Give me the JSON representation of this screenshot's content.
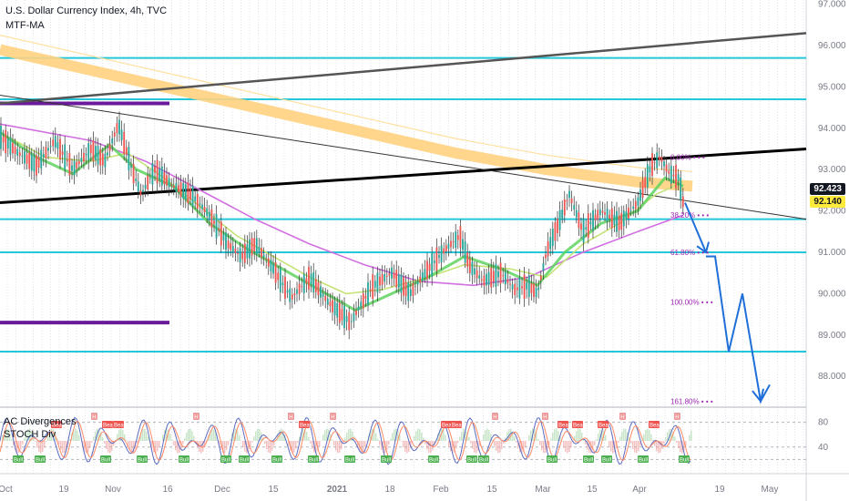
{
  "header": {
    "title": "U.S. Dollar Currency Index, 4h, TVC",
    "indicator": "MTF-MA"
  },
  "oscillator": {
    "label1": "AC Divergences",
    "label2": "STOCH Div",
    "ticks": [
      "80",
      "40"
    ],
    "badge_bull": "Bull",
    "badge_bear": "Bear",
    "badge_h": "H"
  },
  "price_tags": {
    "last": "92.423",
    "current": "92.140",
    "last_color": "#131722",
    "current_color": "#ffeb3b"
  },
  "fib_labels": [
    "0.00%",
    "38.20%",
    "61.80%",
    "100.00%",
    "161.80%"
  ],
  "chart_data": {
    "type": "line",
    "title": "U.S. Dollar Currency Index, 4h, TVC",
    "y_ticks": [
      "97.000",
      "96.000",
      "95.000",
      "94.000",
      "93.000",
      "92.000",
      "91.000",
      "90.000",
      "89.000",
      "88.000"
    ],
    "ylim": [
      87.3,
      97.1
    ],
    "x_ticks": [
      "Oct",
      "19",
      "Nov",
      "16",
      "Dec",
      "15",
      "2021",
      "18",
      "Feb",
      "15",
      "Mar",
      "15",
      "Apr",
      "19",
      "May"
    ],
    "price_path": [
      [
        0,
        93.8
      ],
      [
        20,
        93.4
      ],
      [
        40,
        93.1
      ],
      [
        60,
        93.7
      ],
      [
        80,
        93.0
      ],
      [
        100,
        93.5
      ],
      [
        115,
        93.2
      ],
      [
        130,
        94.1
      ],
      [
        145,
        93.0
      ],
      [
        155,
        92.4
      ],
      [
        170,
        93.0
      ],
      [
        190,
        92.6
      ],
      [
        210,
        92.4
      ],
      [
        230,
        91.9
      ],
      [
        250,
        91.2
      ],
      [
        265,
        90.9
      ],
      [
        280,
        91.2
      ],
      [
        300,
        90.6
      ],
      [
        320,
        89.9
      ],
      [
        340,
        90.4
      ],
      [
        360,
        89.8
      ],
      [
        375,
        89.5
      ],
      [
        385,
        89.3
      ],
      [
        395,
        89.7
      ],
      [
        410,
        90.2
      ],
      [
        430,
        90.5
      ],
      [
        450,
        90.0
      ],
      [
        470,
        90.6
      ],
      [
        490,
        91.1
      ],
      [
        505,
        91.4
      ],
      [
        515,
        90.7
      ],
      [
        530,
        90.3
      ],
      [
        550,
        90.5
      ],
      [
        565,
        90.1
      ],
      [
        580,
        90.2
      ],
      [
        590,
        90.0
      ],
      [
        600,
        91.0
      ],
      [
        615,
        91.8
      ],
      [
        625,
        92.4
      ],
      [
        640,
        91.5
      ],
      [
        660,
        92.0
      ],
      [
        680,
        91.7
      ],
      [
        700,
        92.2
      ],
      [
        715,
        93.1
      ],
      [
        725,
        93.3
      ],
      [
        735,
        92.9
      ],
      [
        745,
        92.8
      ],
      [
        750,
        92.2
      ]
    ],
    "green_ma": [
      [
        0,
        93.9
      ],
      [
        40,
        93.3
      ],
      [
        80,
        92.9
      ],
      [
        120,
        93.6
      ],
      [
        150,
        93.0
      ],
      [
        190,
        92.6
      ],
      [
        230,
        91.7
      ],
      [
        270,
        91.1
      ],
      [
        310,
        90.6
      ],
      [
        350,
        90.1
      ],
      [
        390,
        89.6
      ],
      [
        430,
        90.0
      ],
      [
        470,
        90.4
      ],
      [
        510,
        90.9
      ],
      [
        550,
        90.6
      ],
      [
        590,
        90.2
      ],
      [
        620,
        91.0
      ],
      [
        660,
        91.7
      ],
      [
        700,
        92.0
      ],
      [
        730,
        92.8
      ],
      [
        750,
        92.6
      ]
    ],
    "lime_ma": [
      [
        0,
        93.9
      ],
      [
        50,
        93.3
      ],
      [
        100,
        93.2
      ],
      [
        140,
        93.4
      ],
      [
        180,
        92.8
      ],
      [
        220,
        92.1
      ],
      [
        260,
        91.4
      ],
      [
        300,
        90.9
      ],
      [
        340,
        90.4
      ],
      [
        380,
        90.0
      ],
      [
        420,
        90.1
      ],
      [
        470,
        90.4
      ],
      [
        510,
        90.7
      ],
      [
        560,
        90.6
      ],
      [
        600,
        90.4
      ],
      [
        640,
        91.2
      ],
      [
        680,
        91.7
      ],
      [
        720,
        92.4
      ],
      [
        750,
        92.7
      ]
    ],
    "magenta_ma": [
      [
        0,
        94.1
      ],
      [
        100,
        93.7
      ],
      [
        160,
        93.2
      ],
      [
        220,
        92.5
      ],
      [
        280,
        91.8
      ],
      [
        340,
        91.2
      ],
      [
        400,
        90.7
      ],
      [
        460,
        90.3
      ],
      [
        520,
        90.2
      ],
      [
        580,
        90.4
      ],
      [
        640,
        91.0
      ],
      [
        700,
        91.5
      ],
      [
        750,
        91.9
      ]
    ],
    "orange_ma": [
      [
        0,
        95.9
      ],
      [
        100,
        95.4
      ],
      [
        200,
        94.9
      ],
      [
        300,
        94.4
      ],
      [
        400,
        93.9
      ],
      [
        500,
        93.4
      ],
      [
        600,
        93.0
      ],
      [
        700,
        92.7
      ],
      [
        760,
        92.6
      ]
    ],
    "trendlines": [
      {
        "from": [
          0,
          92.2
        ],
        "to": [
          885,
          93.5
        ],
        "color": "#000000",
        "width": 3
      },
      {
        "from": [
          0,
          94.6
        ],
        "to": [
          885,
          96.3
        ],
        "color": "#555555",
        "width": 2.5
      },
      {
        "from": [
          0,
          94.8
        ],
        "to": [
          885,
          91.8
        ],
        "color": "#333333",
        "width": 1
      }
    ],
    "horizontal_levels": [
      {
        "y": 95.7,
        "color": "#26c6da"
      },
      {
        "y": 94.7,
        "color": "#26c6da"
      },
      {
        "y": 91.8,
        "color": "#26c6da"
      },
      {
        "y": 91.0,
        "color": "#26c6da"
      },
      {
        "y": 88.6,
        "color": "#26c6da"
      }
    ],
    "purple_levels": [
      {
        "y": 94.6,
        "x_end": 186
      },
      {
        "y": 89.3,
        "x_end": 186
      }
    ],
    "fib_levels": [
      93.3,
      91.9,
      91.0,
      89.8,
      87.4
    ],
    "projection": [
      [
        752,
        92.2
      ],
      [
        775,
        91.0
      ]
    ],
    "projection2": [
      [
        775,
        90.9
      ],
      [
        785,
        90.9
      ],
      [
        800,
        88.6
      ],
      [
        815,
        90.0
      ],
      [
        835,
        87.4
      ],
      [
        845,
        87.8
      ]
    ]
  }
}
